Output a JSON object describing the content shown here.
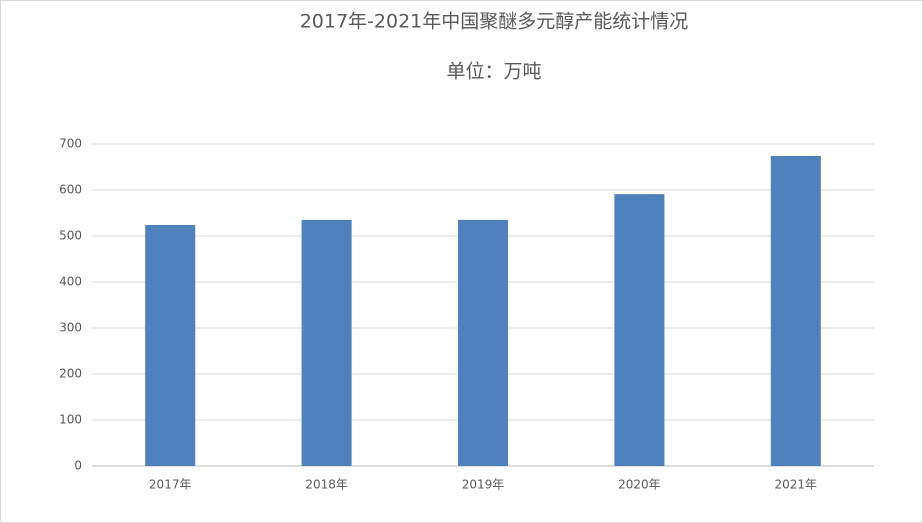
{
  "chart_data": {
    "type": "bar",
    "title": "2017年-2021年中国聚醚多元醇产能统计情况",
    "subtitle": "单位：万吨",
    "categories": [
      "2017年",
      "2018年",
      "2019年",
      "2020年",
      "2021年"
    ],
    "values": [
      524,
      535,
      535,
      591,
      674
    ],
    "color": "#4f81bd",
    "ylim": [
      0,
      700
    ],
    "yticks": [
      0,
      100,
      200,
      300,
      400,
      500,
      600,
      700
    ],
    "grid": true
  }
}
